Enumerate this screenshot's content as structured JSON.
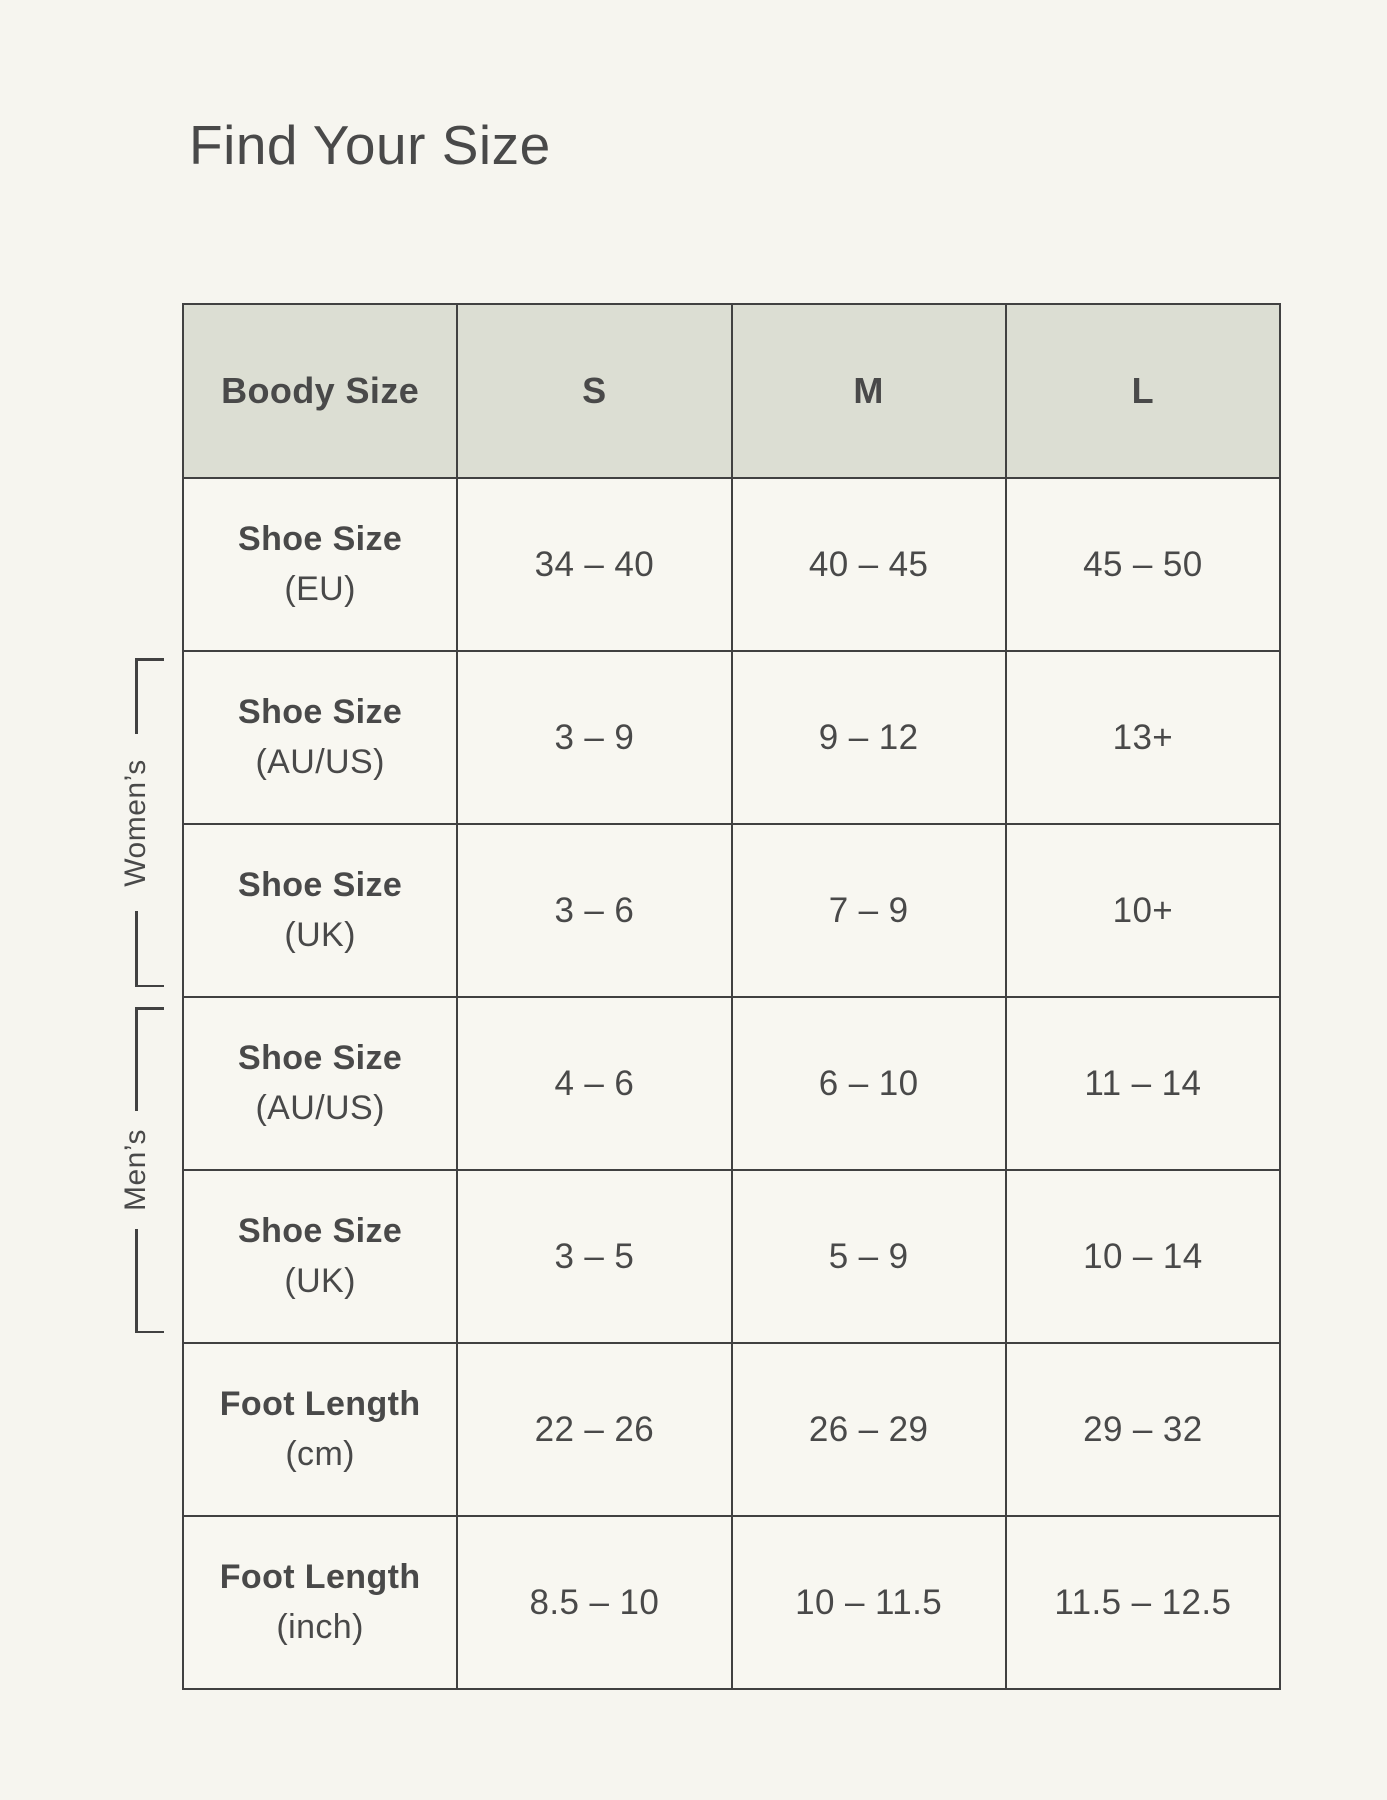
{
  "page": {
    "title": "Find Your Size"
  },
  "table": {
    "header": [
      "Boody Size",
      "S",
      "M",
      "L"
    ],
    "rows": [
      {
        "label": "Shoe Size",
        "unit": "(EU)",
        "values": [
          "34 – 40",
          "40 – 45",
          "45 – 50"
        ]
      },
      {
        "label": "Shoe Size",
        "unit": "(AU/US)",
        "values": [
          "3 – 9",
          "9 – 12",
          "13+"
        ]
      },
      {
        "label": "Shoe Size",
        "unit": "(UK)",
        "values": [
          "3 – 6",
          "7 – 9",
          "10+"
        ]
      },
      {
        "label": "Shoe Size",
        "unit": "(AU/US)",
        "values": [
          "4 – 6",
          "6 – 10",
          "11 – 14"
        ]
      },
      {
        "label": "Shoe Size",
        "unit": "(UK)",
        "values": [
          "3 – 5",
          "5 – 9",
          "10 – 14"
        ]
      },
      {
        "label": "Foot Length",
        "unit": "(cm)",
        "values": [
          "22 – 26",
          "26 – 29",
          "29 – 32"
        ]
      },
      {
        "label": "Foot Length",
        "unit": "(inch)",
        "values": [
          "8.5 – 10",
          "10 – 11.5",
          "11.5 – 12.5"
        ]
      }
    ]
  },
  "groups": {
    "womens": {
      "label": "Women’s",
      "rows": [
        1,
        2
      ]
    },
    "mens": {
      "label": "Men’s",
      "rows": [
        3,
        4
      ]
    }
  },
  "colors": {
    "page-bg": "#f6f5ef",
    "cell-bg": "#f8f7f1",
    "header-bg": "#dcded3",
    "border": "#414141",
    "text": "#494949"
  }
}
